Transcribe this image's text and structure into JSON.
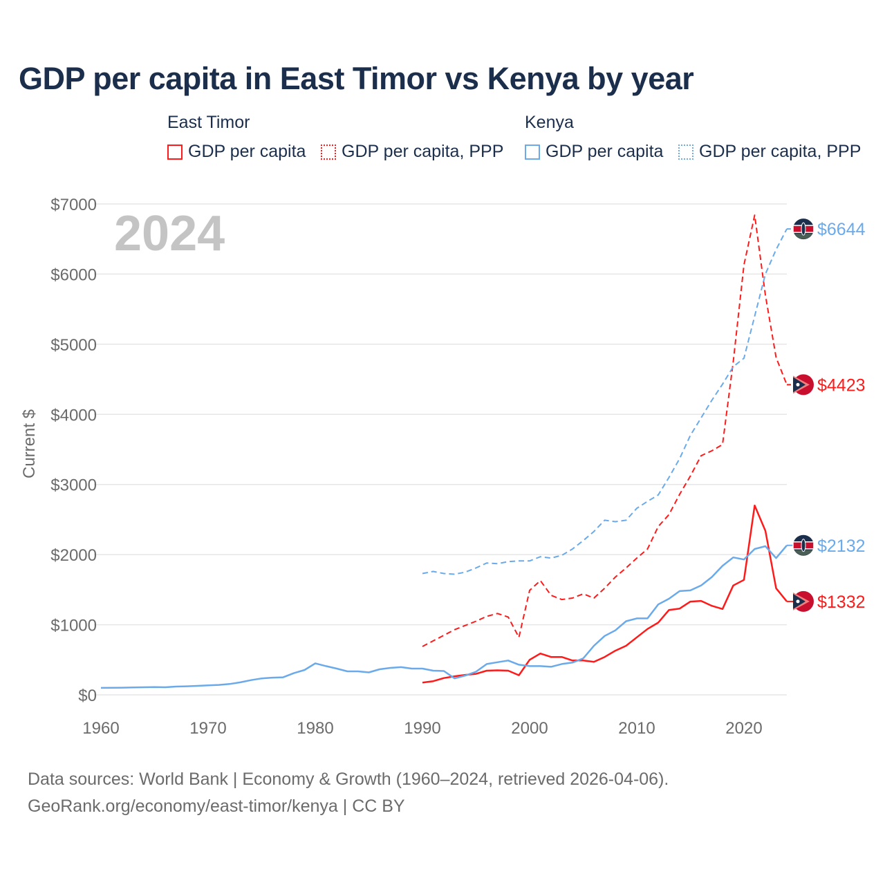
{
  "title": "GDP per capita in East Timor vs Kenya by year",
  "legend": {
    "groups": [
      {
        "name": "East Timor",
        "items": [
          "GDP per capita",
          "GDP per capita, PPP"
        ],
        "color": "#ff1a1a"
      },
      {
        "name": "Kenya",
        "items": [
          "GDP per capita",
          "GDP per capita, PPP"
        ],
        "color": "#6aaaea"
      }
    ]
  },
  "year_label": "2024",
  "source": {
    "line1": "Data sources: World Bank | Economy & Growth (1960–2024, retrieved 2026-04-06).",
    "line2": "GeoRank.org/economy/east-timor/kenya | CC BY"
  },
  "chart_data": {
    "type": "line",
    "title": "GDP per capita in East Timor vs Kenya by year",
    "xlabel": "",
    "ylabel": "Current $",
    "xlim": [
      1960,
      2024
    ],
    "ylim": [
      0,
      7000
    ],
    "xticks": [
      1960,
      1970,
      1980,
      1990,
      2000,
      2010,
      2020
    ],
    "xtick_labels": [
      "1960",
      "1970",
      "1980",
      "1990",
      "2000",
      "2010",
      "2020"
    ],
    "yticks": [
      0,
      1000,
      2000,
      3000,
      4000,
      5000,
      6000,
      7000
    ],
    "ytick_labels": [
      "$0",
      "$1000",
      "$2000",
      "$3000",
      "$4000",
      "$5000",
      "$6000",
      "$7000"
    ],
    "grid": true,
    "legend_position": "top",
    "series": [
      {
        "name": "East Timor GDP per capita",
        "country": "East Timor",
        "style": "solid",
        "color": "#ff1a1a",
        "start": 1990,
        "values": [
          175,
          195,
          240,
          265,
          285,
          300,
          345,
          350,
          345,
          280,
          500,
          590,
          540,
          540,
          490,
          490,
          470,
          540,
          630,
          700,
          820,
          940,
          1030,
          1210,
          1230,
          1330,
          1340,
          1270,
          1225,
          1560,
          1640,
          2700,
          2340,
          1520,
          1332
        ],
        "end_label": "$1332"
      },
      {
        "name": "East Timor GDP per capita, PPP",
        "country": "East Timor",
        "style": "dashed",
        "color": "#ff1a1a",
        "start": 1990,
        "values": [
          690,
          770,
          850,
          930,
          990,
          1050,
          1120,
          1160,
          1110,
          820,
          1490,
          1630,
          1420,
          1360,
          1380,
          1440,
          1380,
          1520,
          1680,
          1810,
          1950,
          2080,
          2400,
          2570,
          2860,
          3120,
          3410,
          3480,
          3570,
          4750,
          6130,
          6840,
          5700,
          4810,
          4423
        ],
        "end_label": "$4423"
      },
      {
        "name": "Kenya GDP per capita",
        "country": "Kenya",
        "style": "solid",
        "color": "#6aaaea",
        "start": 1960,
        "values": [
          100,
          101,
          103,
          106,
          108,
          110,
          108,
          118,
          122,
          128,
          135,
          142,
          155,
          178,
          210,
          235,
          245,
          250,
          310,
          355,
          450,
          410,
          375,
          335,
          335,
          320,
          365,
          385,
          395,
          375,
          375,
          345,
          340,
          235,
          275,
          330,
          440,
          465,
          490,
          430,
          410,
          410,
          400,
          440,
          460,
          520,
          700,
          840,
          920,
          1050,
          1090,
          1090,
          1290,
          1370,
          1480,
          1490,
          1560,
          1680,
          1840,
          1960,
          1930,
          2080,
          2120,
          1950,
          2132
        ],
        "end_label": "$2132"
      },
      {
        "name": "Kenya GDP per capita, PPP",
        "country": "Kenya",
        "style": "dashed",
        "color": "#6aaaea",
        "start": 1990,
        "values": [
          1730,
          1760,
          1730,
          1720,
          1750,
          1810,
          1880,
          1870,
          1900,
          1910,
          1910,
          1970,
          1950,
          1990,
          2080,
          2200,
          2330,
          2490,
          2470,
          2490,
          2660,
          2760,
          2850,
          3100,
          3370,
          3700,
          3950,
          4200,
          4430,
          4680,
          4800,
          5400,
          6000,
          6350,
          6644
        ],
        "end_label": "$6644"
      }
    ]
  }
}
